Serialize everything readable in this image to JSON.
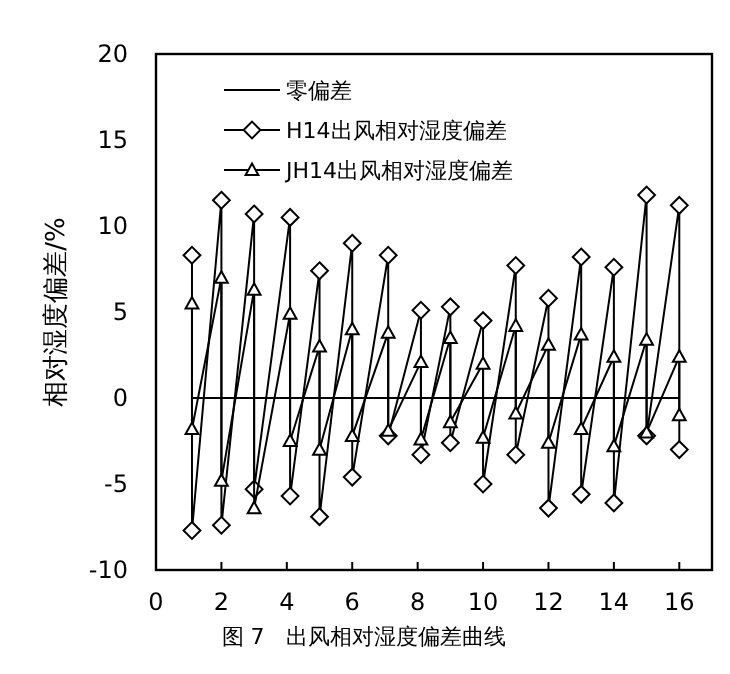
{
  "chart_data": {
    "type": "line",
    "ylabel": "相对湿度偏差/%",
    "annotations": [
      "图 7　出风相对湿度偏差曲线"
    ],
    "xlim": [
      0,
      17
    ],
    "ylim": [
      -10,
      20
    ],
    "xticks": [
      0,
      2,
      4,
      6,
      8,
      10,
      12,
      14,
      16
    ],
    "yticks": [
      -10,
      -5,
      0,
      5,
      10,
      15,
      20
    ],
    "grid": false,
    "legend": "top left",
    "series": [
      {
        "name": "零偏差",
        "color": "#000000",
        "marker": "none",
        "x": [
          1.1,
          16
        ],
        "values": [
          0,
          0
        ]
      },
      {
        "name": "H14出风相对湿度偏差",
        "color": "#000000",
        "marker": "diamond",
        "x": [
          1.1,
          1.1,
          2,
          2,
          3,
          3,
          4.1,
          4.1,
          5,
          5,
          6,
          6,
          7.1,
          7.1,
          8.1,
          8.1,
          9,
          9,
          10,
          10,
          11,
          11,
          12,
          12,
          13,
          13,
          14,
          14,
          15,
          15,
          16,
          16
        ],
        "values": [
          8.3,
          -7.7,
          11.5,
          -7.4,
          10.7,
          -5.3,
          10.5,
          -5.7,
          7.4,
          -6.9,
          9.0,
          -4.6,
          8.3,
          -2.2,
          5.1,
          -3.3,
          5.3,
          -2.6,
          4.5,
          -5.0,
          7.7,
          -3.3,
          5.8,
          -6.4,
          8.2,
          -5.6,
          7.6,
          -6.1,
          11.8,
          -2.2,
          11.2,
          -3.0
        ]
      },
      {
        "name": "JH14出风相对湿度偏差",
        "color": "#000000",
        "marker": "triangle",
        "x": [
          1.1,
          1.1,
          2,
          2,
          3,
          3,
          4.1,
          4.1,
          5,
          5,
          6,
          6,
          7.1,
          7.1,
          8.1,
          8.1,
          9,
          9,
          10,
          10,
          11,
          11,
          12,
          12,
          13,
          13,
          14,
          14,
          15,
          15,
          16,
          16
        ],
        "values": [
          5.5,
          -1.8,
          7.0,
          -4.8,
          6.3,
          -6.4,
          4.9,
          -2.5,
          3.0,
          -3.0,
          4.0,
          -2.2,
          3.8,
          -1.9,
          2.1,
          -2.4,
          3.5,
          -1.4,
          2.0,
          -2.3,
          4.2,
          -0.9,
          3.1,
          -2.6,
          3.7,
          -1.8,
          2.4,
          -2.8,
          3.4,
          -2.0,
          2.4,
          -1.0
        ]
      }
    ]
  }
}
